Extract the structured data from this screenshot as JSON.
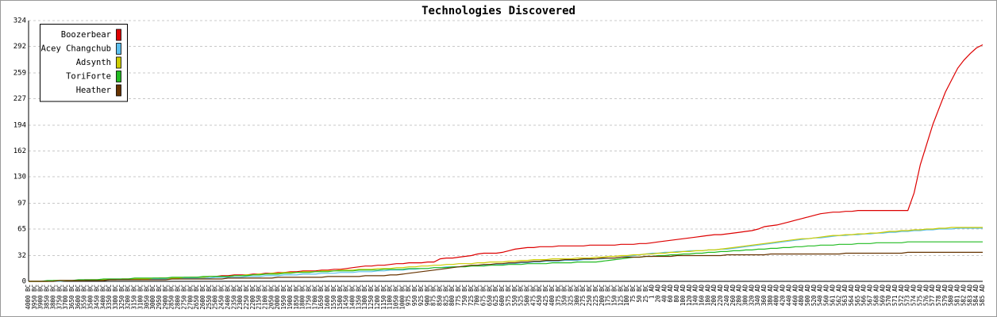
{
  "chart_data": {
    "type": "line",
    "title": "Technologies Discovered",
    "categories": [
      "4000 BC",
      "3950 BC",
      "3900 BC",
      "3850 BC",
      "3800 BC",
      "3750 BC",
      "3700 BC",
      "3650 BC",
      "3600 BC",
      "3550 BC",
      "3500 BC",
      "3450 BC",
      "3400 BC",
      "3350 BC",
      "3300 BC",
      "3250 BC",
      "3200 BC",
      "3150 BC",
      "3100 BC",
      "3050 BC",
      "3000 BC",
      "2950 BC",
      "2900 BC",
      "2850 BC",
      "2800 BC",
      "2750 BC",
      "2700 BC",
      "2650 BC",
      "2600 BC",
      "2550 BC",
      "2500 BC",
      "2450 BC",
      "2400 BC",
      "2350 BC",
      "2300 BC",
      "2250 BC",
      "2200 BC",
      "2150 BC",
      "2100 BC",
      "2050 BC",
      "2000 BC",
      "1950 BC",
      "1900 BC",
      "1850 BC",
      "1800 BC",
      "1750 BC",
      "1700 BC",
      "1650 BC",
      "1600 BC",
      "1550 BC",
      "1500 BC",
      "1450 BC",
      "1400 BC",
      "1350 BC",
      "1300 BC",
      "1250 BC",
      "1200 BC",
      "1150 BC",
      "1100 BC",
      "1050 BC",
      "1000 BC",
      "975 BC",
      "950 BC",
      "925 BC",
      "900 BC",
      "875 BC",
      "850 BC",
      "825 BC",
      "800 BC",
      "775 BC",
      "750 BC",
      "725 BC",
      "700 BC",
      "675 BC",
      "650 BC",
      "625 BC",
      "600 BC",
      "575 BC",
      "550 BC",
      "525 BC",
      "500 BC",
      "475 BC",
      "450 BC",
      "425 BC",
      "400 BC",
      "375 BC",
      "350 BC",
      "325 BC",
      "300 BC",
      "275 BC",
      "250 BC",
      "225 BC",
      "200 BC",
      "175 BC",
      "150 BC",
      "125 BC",
      "100 BC",
      "75 BC",
      "50 BC",
      "25 BC",
      "1 AD",
      "20 AD",
      "40 AD",
      "60 AD",
      "80 AD",
      "100 AD",
      "120 AD",
      "140 AD",
      "160 AD",
      "180 AD",
      "200 AD",
      "220 AD",
      "240 AD",
      "260 AD",
      "280 AD",
      "300 AD",
      "320 AD",
      "340 AD",
      "360 AD",
      "380 AD",
      "400 AD",
      "420 AD",
      "440 AD",
      "460 AD",
      "480 AD",
      "500 AD",
      "520 AD",
      "540 AD",
      "560 AD",
      "561 AD",
      "562 AD",
      "563 AD",
      "564 AD",
      "565 AD",
      "566 AD",
      "567 AD",
      "568 AD",
      "569 AD",
      "570 AD",
      "571 AD",
      "572 AD",
      "573 AD",
      "574 AD",
      "575 AD",
      "576 AD",
      "577 AD",
      "578 AD",
      "579 AD",
      "580 AD",
      "581 AD",
      "582 AD",
      "583 AD",
      "584 AD",
      "585 AD"
    ],
    "series": [
      {
        "name": "Boozerbear",
        "color": "#dd0000",
        "values": [
          0,
          0,
          0,
          0,
          1,
          1,
          1,
          1,
          1,
          2,
          2,
          2,
          2,
          2,
          2,
          3,
          3,
          3,
          3,
          3,
          3,
          4,
          4,
          4,
          4,
          4,
          5,
          5,
          5,
          6,
          6,
          7,
          7,
          8,
          8,
          8,
          9,
          9,
          10,
          10,
          11,
          11,
          12,
          12,
          13,
          13,
          13,
          14,
          14,
          15,
          15,
          16,
          17,
          18,
          19,
          19,
          20,
          20,
          21,
          22,
          22,
          23,
          23,
          23,
          24,
          24,
          28,
          29,
          29,
          30,
          31,
          32,
          34,
          35,
          35,
          35,
          36,
          38,
          40,
          41,
          42,
          42,
          43,
          43,
          43,
          44,
          44,
          44,
          44,
          44,
          45,
          45,
          45,
          45,
          45,
          46,
          46,
          46,
          47,
          47,
          48,
          49,
          50,
          51,
          52,
          53,
          54,
          55,
          56,
          57,
          58,
          58,
          59,
          60,
          61,
          62,
          63,
          65,
          68,
          69,
          70,
          72,
          74,
          76,
          78,
          80,
          82,
          84,
          85,
          86,
          86,
          87,
          87,
          88,
          88,
          88,
          88,
          88,
          88,
          88,
          88,
          88,
          110,
          145,
          170,
          195,
          215,
          235,
          250,
          265,
          275,
          283,
          290,
          294
        ]
      },
      {
        "name": "Acey Changchub",
        "color": "#5bbfee",
        "values": [
          0,
          0,
          0,
          0,
          0,
          0,
          1,
          1,
          1,
          1,
          1,
          1,
          1,
          2,
          2,
          2,
          2,
          2,
          2,
          3,
          3,
          3,
          3,
          3,
          3,
          4,
          4,
          4,
          4,
          4,
          5,
          5,
          5,
          5,
          5,
          6,
          6,
          6,
          7,
          7,
          7,
          8,
          8,
          8,
          9,
          9,
          9,
          10,
          10,
          10,
          11,
          11,
          11,
          12,
          12,
          12,
          13,
          13,
          14,
          14,
          14,
          15,
          15,
          16,
          16,
          17,
          17,
          18,
          18,
          18,
          19,
          19,
          20,
          20,
          20,
          21,
          21,
          22,
          22,
          23,
          23,
          24,
          24,
          25,
          25,
          25,
          26,
          26,
          26,
          27,
          27,
          28,
          28,
          29,
          29,
          30,
          31,
          32,
          33,
          34,
          35,
          35,
          36,
          36,
          37,
          37,
          38,
          38,
          38,
          39,
          39,
          40,
          40,
          41,
          42,
          43,
          44,
          45,
          46,
          47,
          48,
          49,
          50,
          51,
          52,
          53,
          54,
          54,
          55,
          56,
          57,
          57,
          58,
          58,
          59,
          59,
          60,
          60,
          61,
          61,
          62,
          62,
          63,
          63,
          64,
          64,
          65,
          65,
          65,
          66,
          66,
          66,
          66,
          66
        ]
      },
      {
        "name": "Adsynth",
        "color": "#cccc00",
        "values": [
          0,
          0,
          0,
          0,
          1,
          1,
          1,
          1,
          1,
          1,
          2,
          2,
          2,
          2,
          2,
          3,
          3,
          3,
          3,
          3,
          4,
          4,
          4,
          4,
          4,
          5,
          5,
          5,
          5,
          6,
          6,
          6,
          6,
          7,
          7,
          8,
          8,
          9,
          9,
          10,
          10,
          11,
          11,
          11,
          12,
          12,
          12,
          13,
          13,
          13,
          14,
          14,
          14,
          15,
          15,
          15,
          16,
          16,
          16,
          17,
          17,
          18,
          18,
          19,
          19,
          20,
          20,
          21,
          21,
          22,
          22,
          22,
          23,
          23,
          24,
          24,
          24,
          25,
          25,
          26,
          26,
          27,
          27,
          27,
          28,
          28,
          28,
          28,
          29,
          29,
          29,
          30,
          30,
          31,
          31,
          32,
          32,
          33,
          33,
          34,
          34,
          35,
          35,
          36,
          36,
          37,
          37,
          38,
          38,
          39,
          39,
          40,
          41,
          42,
          43,
          44,
          45,
          46,
          47,
          48,
          49,
          50,
          51,
          52,
          53,
          53,
          54,
          55,
          56,
          57,
          57,
          58,
          58,
          59,
          59,
          60,
          60,
          61,
          62,
          62,
          63,
          63,
          64,
          64,
          65,
          65,
          66,
          66,
          67,
          67,
          67,
          67,
          67,
          67
        ]
      },
      {
        "name": "ToriForte",
        "color": "#22bb22",
        "values": [
          0,
          0,
          0,
          1,
          1,
          1,
          1,
          1,
          2,
          2,
          2,
          2,
          3,
          3,
          3,
          3,
          3,
          4,
          4,
          4,
          4,
          4,
          4,
          5,
          5,
          5,
          5,
          5,
          6,
          6,
          6,
          6,
          6,
          7,
          7,
          7,
          8,
          8,
          9,
          9,
          9,
          10,
          10,
          11,
          11,
          11,
          12,
          12,
          12,
          13,
          13,
          13,
          13,
          14,
          14,
          14,
          14,
          15,
          15,
          15,
          15,
          16,
          16,
          16,
          16,
          17,
          17,
          17,
          18,
          18,
          18,
          19,
          19,
          19,
          20,
          20,
          20,
          21,
          21,
          21,
          22,
          22,
          22,
          22,
          23,
          23,
          23,
          23,
          24,
          24,
          24,
          24,
          25,
          26,
          27,
          28,
          29,
          30,
          30,
          31,
          31,
          32,
          32,
          33,
          33,
          34,
          34,
          35,
          35,
          36,
          36,
          37,
          37,
          38,
          38,
          39,
          39,
          40,
          40,
          41,
          41,
          42,
          42,
          43,
          43,
          44,
          44,
          45,
          45,
          45,
          46,
          46,
          46,
          47,
          47,
          47,
          48,
          48,
          48,
          48,
          48,
          49,
          49,
          49,
          49,
          49,
          49,
          49,
          49,
          49,
          49,
          49,
          49,
          49
        ]
      },
      {
        "name": "Heather",
        "color": "#663300",
        "values": [
          0,
          0,
          0,
          0,
          0,
          1,
          1,
          1,
          1,
          1,
          1,
          1,
          1,
          2,
          2,
          2,
          2,
          2,
          2,
          2,
          2,
          2,
          2,
          3,
          3,
          3,
          3,
          3,
          3,
          3,
          3,
          3,
          4,
          4,
          4,
          4,
          4,
          4,
          4,
          4,
          5,
          5,
          5,
          5,
          5,
          5,
          5,
          5,
          6,
          6,
          6,
          6,
          6,
          6,
          7,
          7,
          7,
          7,
          8,
          8,
          9,
          10,
          11,
          12,
          13,
          14,
          15,
          16,
          17,
          18,
          19,
          20,
          20,
          21,
          21,
          22,
          22,
          23,
          23,
          24,
          24,
          25,
          25,
          26,
          26,
          26,
          27,
          27,
          27,
          28,
          28,
          28,
          29,
          29,
          29,
          30,
          30,
          30,
          30,
          31,
          31,
          31,
          31,
          31,
          32,
          32,
          32,
          32,
          32,
          32,
          32,
          32,
          33,
          33,
          33,
          33,
          33,
          33,
          33,
          34,
          34,
          34,
          34,
          34,
          34,
          34,
          34,
          34,
          34,
          34,
          34,
          35,
          35,
          35,
          35,
          35,
          35,
          35,
          35,
          35,
          35,
          36,
          36,
          36,
          36,
          36,
          36,
          36,
          36,
          36,
          36,
          36,
          36,
          36
        ]
      }
    ],
    "ylim": [
      0,
      324
    ],
    "yticks": [
      0,
      32,
      65,
      97,
      130,
      162,
      194,
      227,
      259,
      292,
      324
    ],
    "grid": true,
    "legend": "top-left"
  }
}
